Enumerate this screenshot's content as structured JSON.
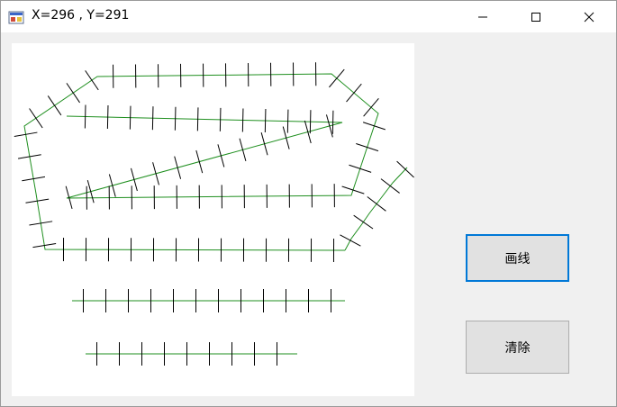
{
  "window": {
    "title": "X=296 , Y=291",
    "controls": {
      "minimize_icon": "minimize-icon",
      "maximize_icon": "maximize-icon",
      "close_icon": "close-icon"
    }
  },
  "buttons": {
    "draw_label": "画线",
    "clear_label": "清除"
  },
  "colors": {
    "line": "#1f8f1f",
    "tick": "#000000",
    "canvas": "#ffffff",
    "window_bg": "#f0f0f0",
    "focus_border": "#0078d7"
  }
}
